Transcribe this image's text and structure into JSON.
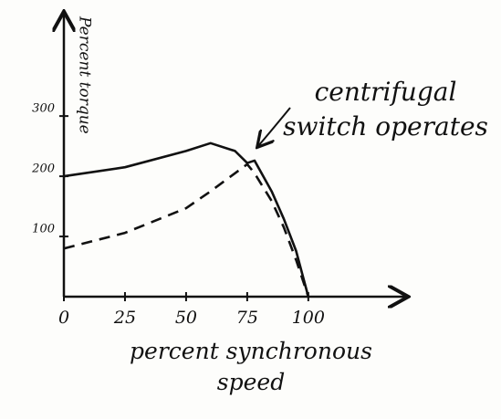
{
  "chart_data": {
    "type": "line",
    "x_label": "percent synchronous speed",
    "y_label": "Percent torque",
    "annotation": "centrifugal switch operates",
    "x": [
      0,
      25,
      50,
      60,
      70,
      75,
      78,
      85,
      90,
      95,
      100
    ],
    "series": [
      {
        "color": "#111111",
        "style": "solid",
        "values": [
          200,
          215,
          242,
          255,
          242,
          222,
          226,
          175,
          129,
          76,
          0
        ]
      },
      {
        "color": "#111111",
        "style": "dashed",
        "values": [
          80,
          106,
          147,
          175,
          205,
          220,
          205,
          159,
          115,
          61,
          0
        ]
      }
    ],
    "xlim": [
      0,
      140
    ],
    "ylim": [
      0,
      470
    ],
    "xticks": [
      0,
      25,
      50,
      75,
      100
    ],
    "yticks": [
      100,
      200,
      300
    ],
    "grid": false
  }
}
